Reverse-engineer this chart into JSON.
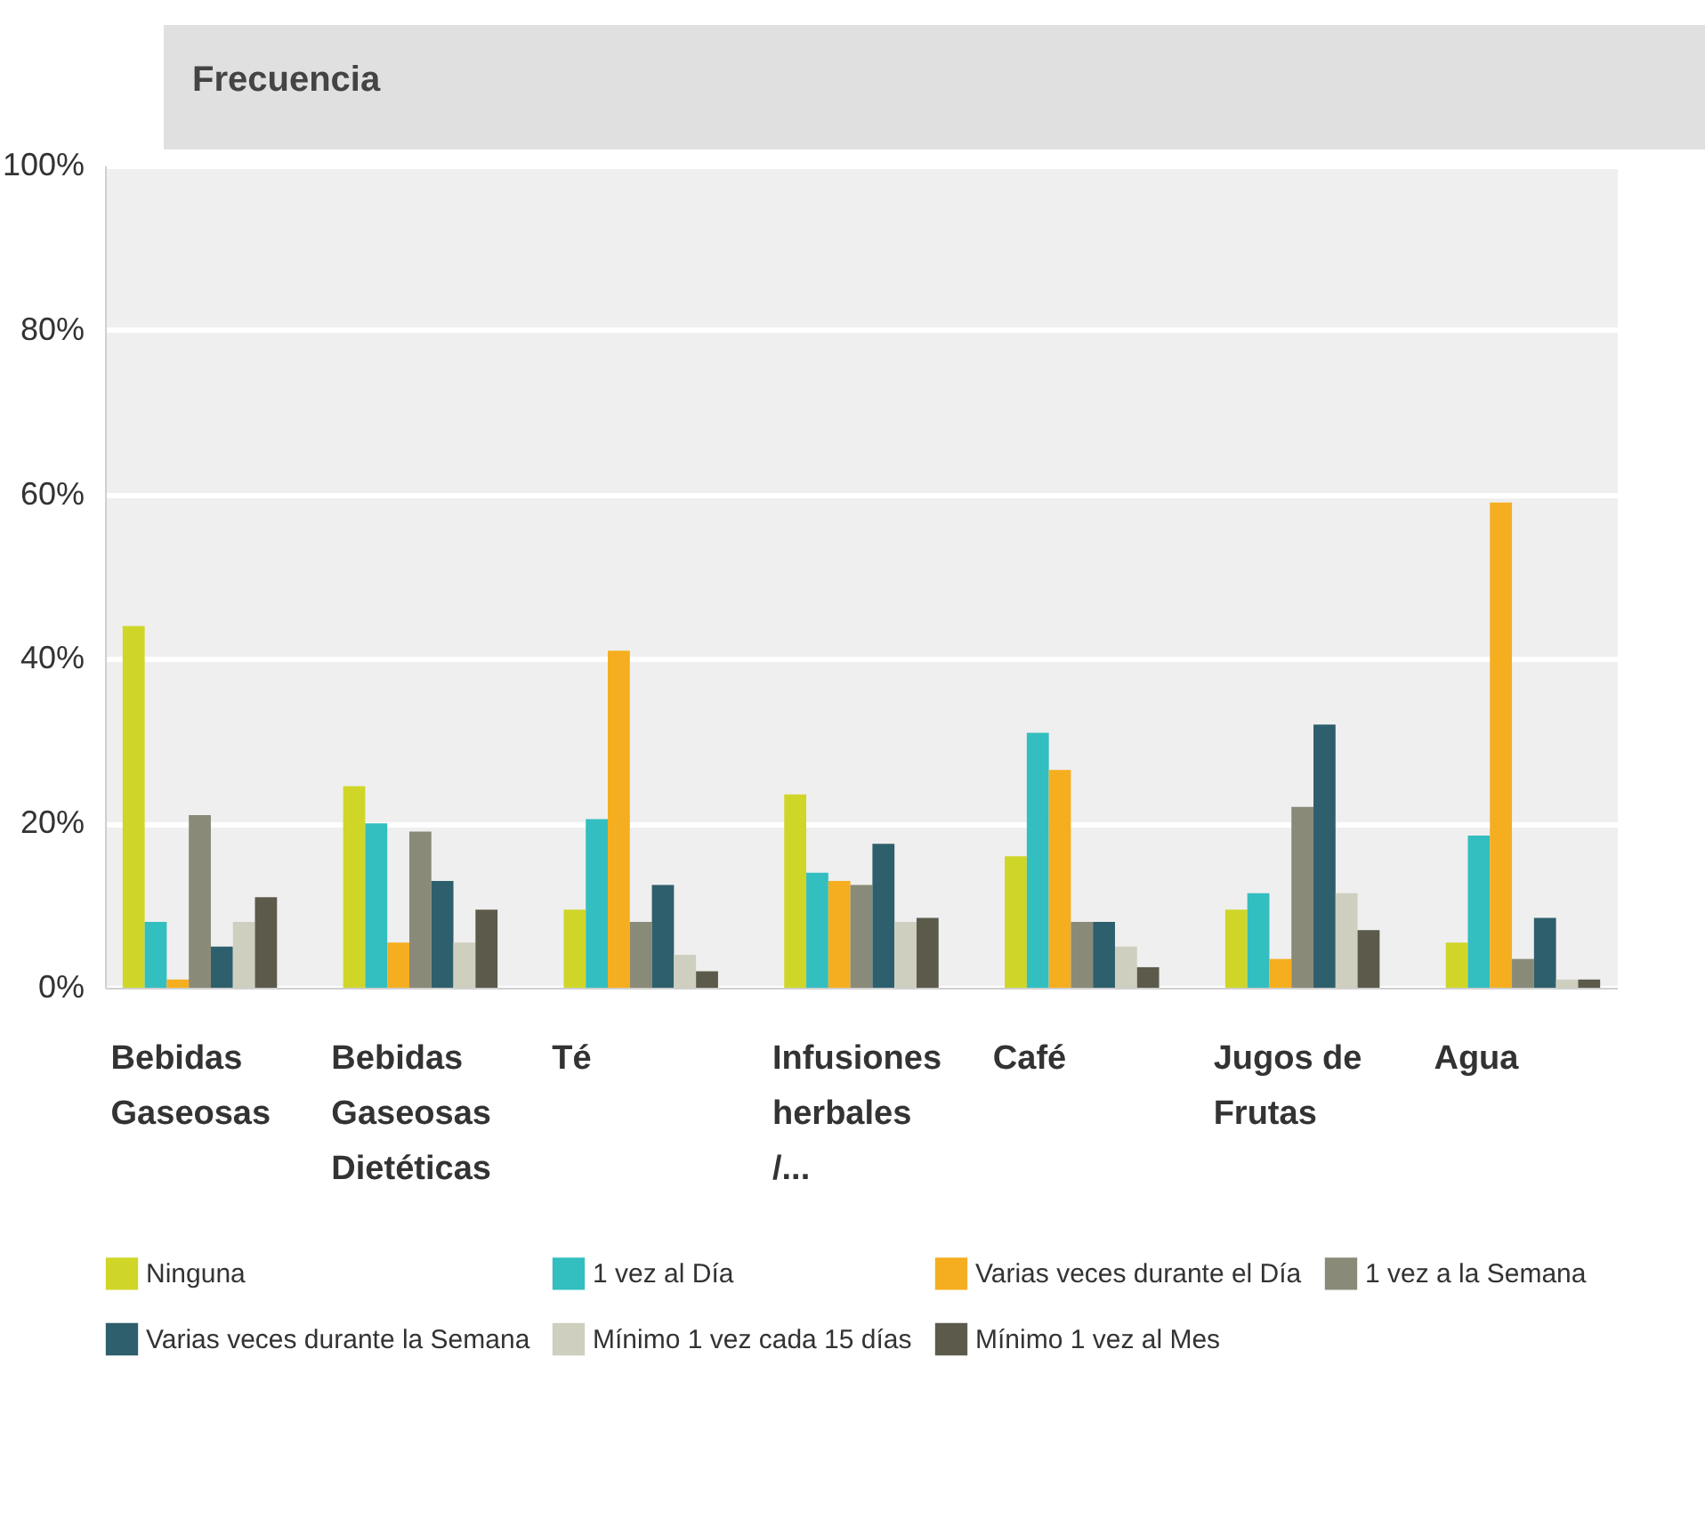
{
  "chart_data": {
    "type": "bar",
    "title": "Frecuencia",
    "categories": [
      "Bebidas Gaseosas",
      "Bebidas Gaseosas Dietéticas",
      "Té",
      "Infusiones herbales /...",
      "Café",
      "Jugos de Frutas",
      "Agua"
    ],
    "series": [
      {
        "name": "Ninguna",
        "color": "#cfd628",
        "values": [
          44,
          24.5,
          9.5,
          23.5,
          16,
          9.5,
          5.5
        ]
      },
      {
        "name": "1 vez al Día",
        "color": "#33bec0",
        "values": [
          8,
          20,
          20.5,
          14,
          31,
          11.5,
          18.5
        ]
      },
      {
        "name": "Varias veces durante el Día",
        "color": "#f5ae1f",
        "values": [
          1,
          5.5,
          41,
          13,
          26.5,
          3.5,
          59
        ]
      },
      {
        "name": "1 vez a la Semana",
        "color": "#8a8a78",
        "values": [
          21,
          19,
          8,
          12.5,
          8,
          22,
          3.5
        ]
      },
      {
        "name": "Varias veces durante la Semana",
        "color": "#2e5f6d",
        "values": [
          5,
          13,
          12.5,
          17.5,
          8,
          32,
          8.5
        ]
      },
      {
        "name": "Mínimo 1 vez cada 15 días",
        "color": "#cfcfc0",
        "values": [
          8,
          5.5,
          4,
          8,
          5,
          11.5,
          1
        ]
      },
      {
        "name": "Mínimo 1 vez al Mes",
        "color": "#5c5a4a",
        "values": [
          11,
          9.5,
          2,
          8.5,
          2.5,
          7,
          1
        ]
      }
    ],
    "ylim": [
      0,
      100
    ],
    "yticks": [
      {
        "value": 0,
        "label": "0%"
      },
      {
        "value": 20,
        "label": "20%"
      },
      {
        "value": 40,
        "label": "40%"
      },
      {
        "value": 60,
        "label": "60%"
      },
      {
        "value": 80,
        "label": "80%"
      },
      {
        "value": 100,
        "label": "100%"
      }
    ],
    "grid": "y",
    "legend": "bottom"
  }
}
